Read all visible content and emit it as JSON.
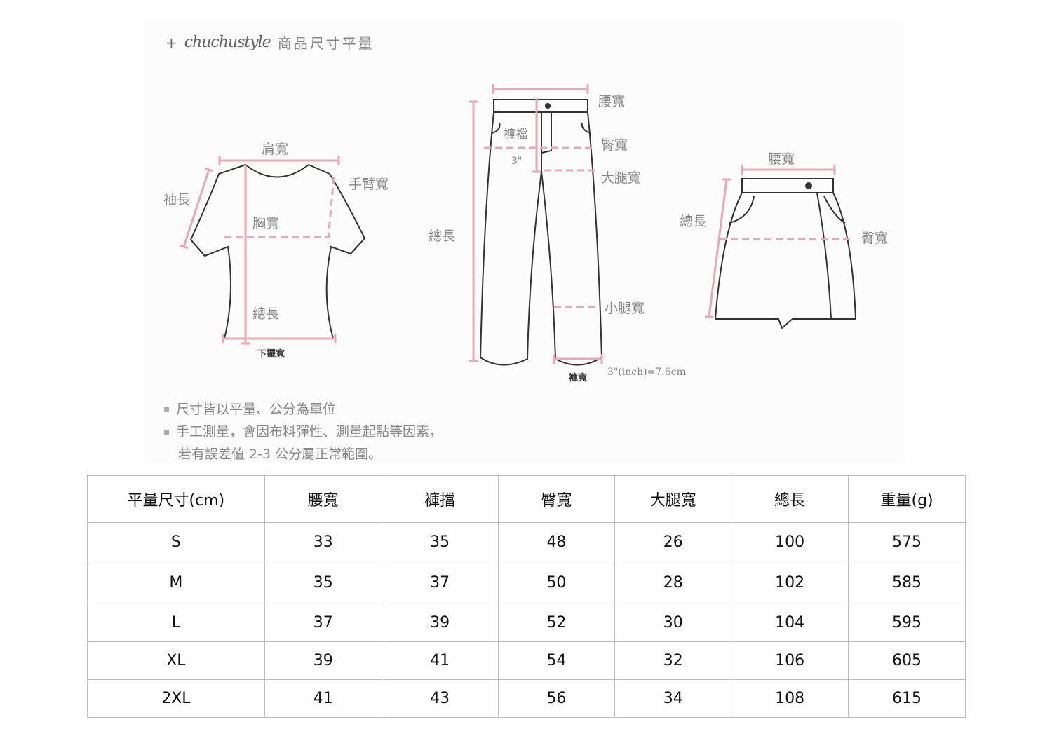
{
  "header": {
    "plus": "+",
    "brand": "chuchustyle",
    "title": "商品尺寸平量"
  },
  "diagram": {
    "accent_color": "#e9a8b8",
    "shirt": {
      "shoulder": "肩寬",
      "arm": "手臂寬",
      "sleeve": "袖長",
      "chest": "胸寬",
      "length": "總長",
      "hem": "下擺寬"
    },
    "pants": {
      "waist": "腰寬",
      "rise": "褲襠",
      "hip": "臀寬",
      "three_inch": "3\"",
      "thigh": "大腿寬",
      "length": "總長",
      "calf": "小腿寬",
      "leg_opening": "褲寬",
      "conversion": "3\"(inch)=7.6cm"
    },
    "skirt": {
      "waist": "腰寬",
      "length": "總長",
      "hip": "臀寬"
    }
  },
  "notes": [
    "尺寸皆以平量、公分為單位",
    "手工測量，會因布料彈性、測量起點等因素，",
    "若有誤差值 2-3 公分屬正常範圍。"
  ],
  "table": {
    "headers": [
      "平量尺寸(cm)",
      "腰寬",
      "褲擋",
      "臀寬",
      "大腿寬",
      "總長",
      "重量(g)"
    ],
    "rows": [
      [
        "S",
        "33",
        "35",
        "48",
        "26",
        "100",
        "575"
      ],
      [
        "M",
        "35",
        "37",
        "50",
        "28",
        "102",
        "585"
      ],
      [
        "L",
        "37",
        "39",
        "52",
        "30",
        "104",
        "595"
      ],
      [
        "XL",
        "39",
        "41",
        "54",
        "32",
        "106",
        "605"
      ],
      [
        "2XL",
        "41",
        "43",
        "56",
        "34",
        "108",
        "615"
      ]
    ]
  }
}
